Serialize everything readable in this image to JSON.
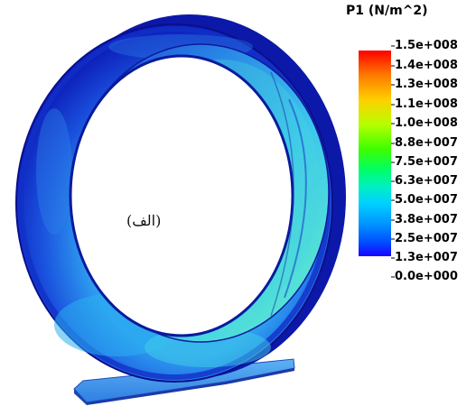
{
  "caption": "(الف)",
  "legend": {
    "title": "P1 (N/m^2)",
    "labels": [
      "1.5e+008",
      "1.4e+008",
      "1.3e+008",
      "1.1e+008",
      "1.0e+008",
      "8.8e+007",
      "7.5e+007",
      "6.3e+007",
      "5.0e+007",
      "3.8e+007",
      "2.5e+007",
      "1.3e+007",
      "0.0e+000"
    ],
    "colors": [
      "#ff0000",
      "#ff7a00",
      "#ffd000",
      "#b6ff00",
      "#3cff00",
      "#00ff66",
      "#00f0c0",
      "#00d2ff",
      "#0096ff",
      "#0050ff",
      "#1a00ff"
    ]
  },
  "colors": {
    "ring_dark": "#0a18b8",
    "ring_mid": "#1a4de0",
    "ring_light": "#39b6f0",
    "ring_highlight": "#55e0d8",
    "base": "#3a8fe8"
  }
}
